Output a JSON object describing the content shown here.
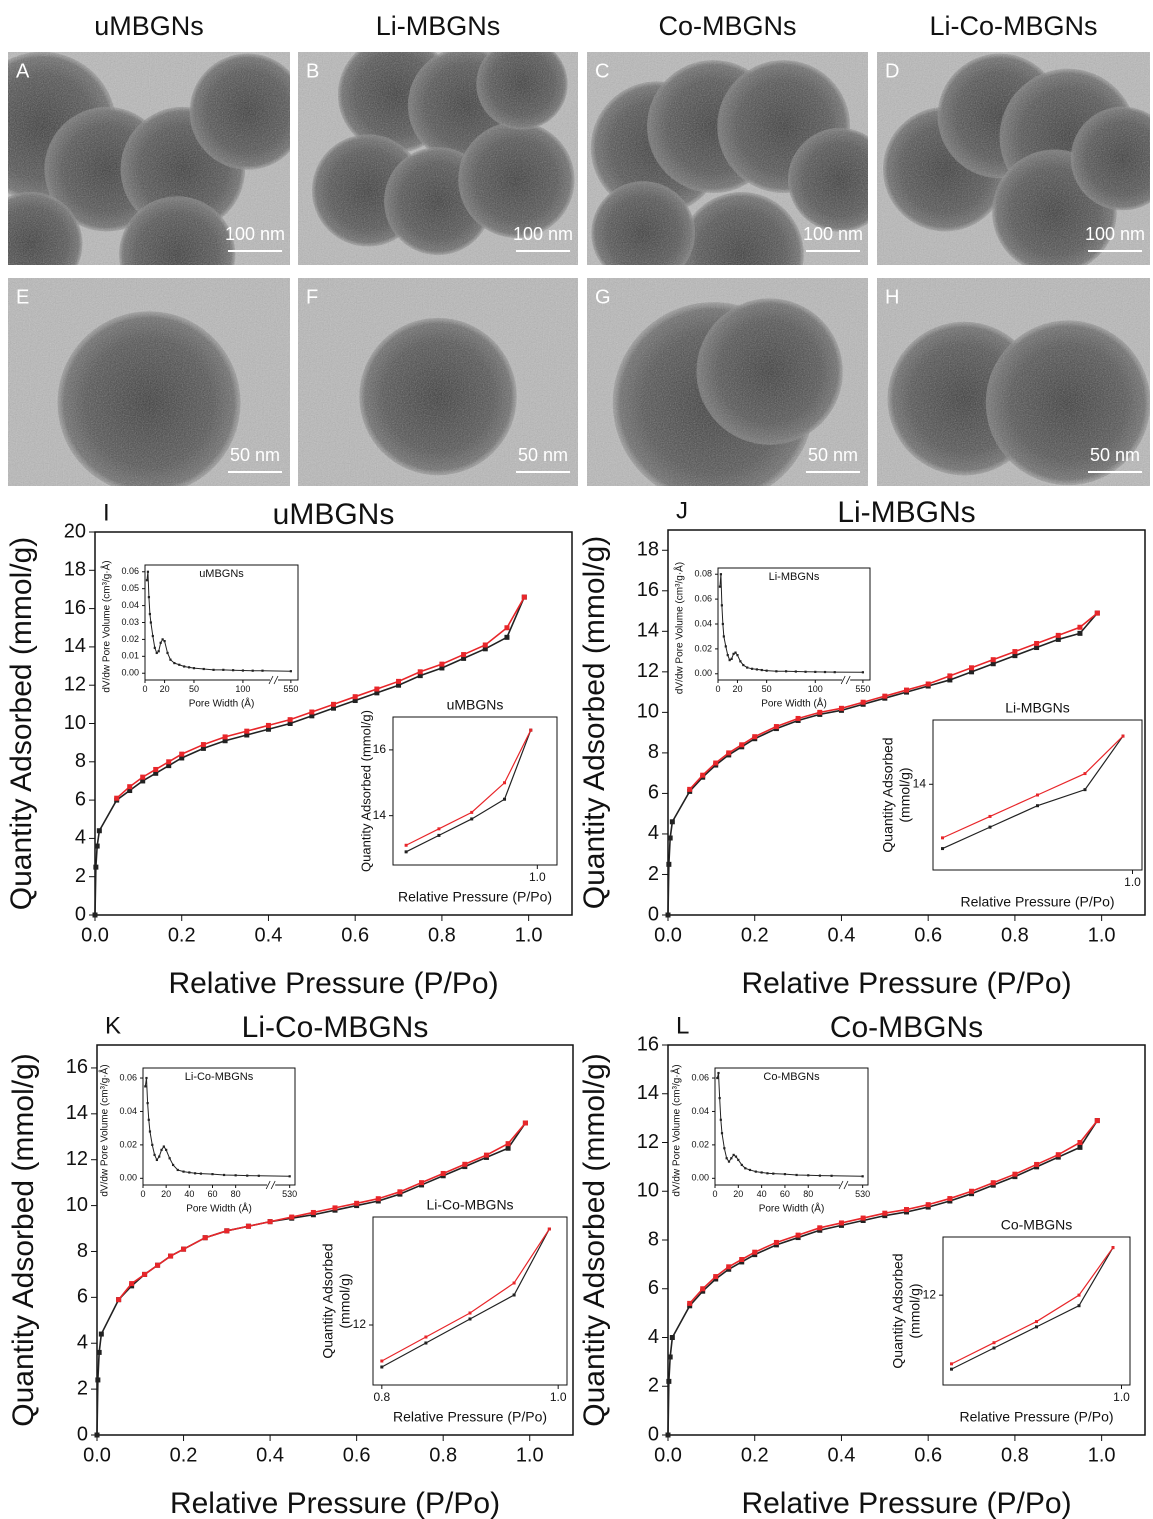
{
  "micrographs": {
    "column_titles": [
      "uMBGNs",
      "Li-MBGNs",
      "Co-MBGNs",
      "Li-Co-MBGNs"
    ],
    "panels": [
      {
        "label": "A",
        "scale_bar": "100 nm"
      },
      {
        "label": "B",
        "scale_bar": "100 nm"
      },
      {
        "label": "C",
        "scale_bar": "100 nm"
      },
      {
        "label": "D",
        "scale_bar": "100 nm"
      },
      {
        "label": "E",
        "scale_bar": "50 nm"
      },
      {
        "label": "F",
        "scale_bar": "50 nm"
      },
      {
        "label": "G",
        "scale_bar": "50 nm"
      },
      {
        "label": "H",
        "scale_bar": "50 nm"
      }
    ]
  },
  "chart_data": [
    {
      "type": "line",
      "label": "I",
      "title": "uMBGNs",
      "xlabel": "Relative Pressure (P/Po)",
      "ylabel": "Quantity Adsorbed (mmol/g)",
      "x": [
        0,
        0.002,
        0.005,
        0.01,
        0.05,
        0.08,
        0.11,
        0.14,
        0.17,
        0.2,
        0.25,
        0.3,
        0.35,
        0.4,
        0.45,
        0.5,
        0.55,
        0.6,
        0.65,
        0.7,
        0.75,
        0.8,
        0.85,
        0.9,
        0.95,
        0.99
      ],
      "series": [
        {
          "color": "#222222",
          "values": [
            0,
            2.5,
            3.6,
            4.4,
            6.0,
            6.5,
            7.0,
            7.4,
            7.8,
            8.2,
            8.7,
            9.1,
            9.4,
            9.7,
            10.0,
            10.4,
            10.8,
            11.2,
            11.6,
            12.0,
            12.5,
            12.9,
            13.4,
            13.9,
            14.5,
            16.6
          ]
        },
        {
          "color": "#e8262a",
          "values": [
            null,
            null,
            null,
            null,
            6.1,
            6.7,
            7.2,
            7.6,
            8.0,
            8.4,
            8.9,
            9.3,
            9.6,
            9.9,
            10.2,
            10.6,
            11.0,
            11.4,
            11.8,
            12.2,
            12.7,
            13.1,
            13.6,
            14.1,
            15.0,
            16.6
          ]
        }
      ],
      "xlim": [
        0,
        1.1
      ],
      "ylim": [
        0,
        20
      ],
      "xticks": [
        {
          "value": 0,
          "label": "0.0"
        },
        0.2,
        0.4,
        0.6,
        0.8,
        {
          "value": 1,
          "label": "1.0"
        }
      ],
      "yticks": [
        0,
        2,
        4,
        6,
        8,
        10,
        12,
        14,
        16,
        18,
        20
      ]
    },
    {
      "type": "line",
      "label": "J",
      "title": "Li-MBGNs",
      "xlabel": "Relative Pressure (P/Po)",
      "ylabel": "Quantity Adsorbed (mmol/g)",
      "x": [
        0,
        0.002,
        0.005,
        0.01,
        0.05,
        0.08,
        0.11,
        0.14,
        0.17,
        0.2,
        0.25,
        0.3,
        0.35,
        0.4,
        0.45,
        0.5,
        0.55,
        0.6,
        0.65,
        0.7,
        0.75,
        0.8,
        0.85,
        0.9,
        0.95,
        0.99
      ],
      "series": [
        {
          "color": "#222222",
          "values": [
            0,
            2.5,
            3.8,
            4.6,
            6.1,
            6.8,
            7.4,
            7.9,
            8.3,
            8.7,
            9.2,
            9.6,
            9.9,
            10.1,
            10.4,
            10.7,
            11.0,
            11.3,
            11.6,
            12.0,
            12.4,
            12.8,
            13.2,
            13.6,
            13.9,
            14.9
          ]
        },
        {
          "color": "#e8262a",
          "values": [
            null,
            null,
            null,
            null,
            6.2,
            6.9,
            7.5,
            8.0,
            8.4,
            8.8,
            9.3,
            9.7,
            10.0,
            10.2,
            10.5,
            10.8,
            11.1,
            11.4,
            11.8,
            12.2,
            12.6,
            13.0,
            13.4,
            13.8,
            14.2,
            14.9
          ]
        }
      ],
      "xlim": [
        0,
        1.1
      ],
      "ylim": [
        0,
        19
      ],
      "xticks": [
        {
          "value": 0,
          "label": "0.0"
        },
        0.2,
        0.4,
        0.6,
        0.8,
        {
          "value": 1,
          "label": "1.0"
        }
      ],
      "yticks": [
        0,
        2,
        4,
        6,
        8,
        10,
        12,
        14,
        16,
        18
      ]
    },
    {
      "type": "line",
      "label": "K",
      "title": "Li-Co-MBGNs",
      "xlabel": "Relative Pressure (P/Po)",
      "ylabel": "Quantity Adsorbed (mmol/g)",
      "x": [
        0,
        0.002,
        0.005,
        0.01,
        0.05,
        0.08,
        0.11,
        0.14,
        0.17,
        0.2,
        0.25,
        0.3,
        0.35,
        0.4,
        0.45,
        0.5,
        0.55,
        0.6,
        0.65,
        0.7,
        0.75,
        0.8,
        0.85,
        0.9,
        0.95,
        0.99
      ],
      "series": [
        {
          "color": "#222222",
          "values": [
            0,
            2.4,
            3.6,
            4.4,
            5.9,
            6.5,
            7.0,
            7.4,
            7.8,
            8.1,
            8.6,
            8.9,
            9.1,
            9.3,
            9.45,
            9.6,
            9.8,
            10.0,
            10.2,
            10.5,
            10.9,
            11.3,
            11.7,
            12.1,
            12.5,
            13.6
          ]
        },
        {
          "color": "#e8262a",
          "values": [
            null,
            null,
            null,
            null,
            5.9,
            6.6,
            7.0,
            7.4,
            7.8,
            8.1,
            8.6,
            8.9,
            9.1,
            9.3,
            9.5,
            9.7,
            9.9,
            10.1,
            10.3,
            10.6,
            11.0,
            11.4,
            11.8,
            12.2,
            12.7,
            13.6
          ]
        }
      ],
      "xlim": [
        0,
        1.1
      ],
      "ylim": [
        0,
        17
      ],
      "xticks": [
        {
          "value": 0,
          "label": "0.0"
        },
        0.2,
        0.4,
        0.6,
        0.8,
        {
          "value": 1,
          "label": "1.0"
        }
      ],
      "yticks": [
        0,
        2,
        4,
        6,
        8,
        10,
        12,
        14,
        16
      ]
    },
    {
      "type": "line",
      "label": "L",
      "title": "Co-MBGNs",
      "xlabel": "Relative Pressure (P/Po)",
      "ylabel": "Quantity Adsorbed (mmol/g)",
      "x": [
        0,
        0.002,
        0.005,
        0.01,
        0.05,
        0.08,
        0.11,
        0.14,
        0.17,
        0.2,
        0.25,
        0.3,
        0.35,
        0.4,
        0.45,
        0.5,
        0.55,
        0.6,
        0.65,
        0.7,
        0.75,
        0.8,
        0.85,
        0.9,
        0.95,
        0.99
      ],
      "series": [
        {
          "color": "#222222",
          "values": [
            0,
            2.2,
            3.2,
            4.0,
            5.3,
            5.9,
            6.4,
            6.8,
            7.1,
            7.4,
            7.8,
            8.1,
            8.4,
            8.6,
            8.8,
            9.0,
            9.15,
            9.35,
            9.6,
            9.9,
            10.25,
            10.6,
            11.0,
            11.4,
            11.8,
            12.9
          ]
        },
        {
          "color": "#e8262a",
          "values": [
            null,
            null,
            null,
            null,
            5.4,
            6.0,
            6.5,
            6.9,
            7.2,
            7.5,
            7.9,
            8.2,
            8.5,
            8.7,
            8.9,
            9.1,
            9.25,
            9.45,
            9.7,
            10.0,
            10.35,
            10.7,
            11.1,
            11.5,
            12.0,
            12.9
          ]
        }
      ],
      "xlim": [
        0,
        1.1
      ],
      "ylim": [
        0,
        16
      ],
      "xticks": [
        {
          "value": 0,
          "label": "0.0"
        },
        0.2,
        0.4,
        0.6,
        0.8,
        {
          "value": 1,
          "label": "1.0"
        }
      ],
      "yticks": [
        0,
        2,
        4,
        6,
        8,
        10,
        12,
        14,
        16
      ]
    },
    {
      "type": "line",
      "title": "uMBGNs",
      "xlabel": "Pore Width (Å)",
      "ylabel": "dV/dw Pore Volume (cm³/g·Å)",
      "x": [
        2,
        3,
        4,
        5,
        6,
        8,
        10,
        12,
        14,
        16,
        18,
        20,
        23,
        26,
        30,
        35,
        40,
        45,
        50,
        60,
        70,
        80,
        90,
        100,
        110,
        120,
        550
      ],
      "series": [
        {
          "color": "#222222",
          "values": [
            0.055,
            0.06,
            0.045,
            0.035,
            0.03,
            0.022,
            0.015,
            0.012,
            0.013,
            0.018,
            0.02,
            0.019,
            0.012,
            0.008,
            0.006,
            0.005,
            0.004,
            0.0035,
            0.003,
            0.0025,
            0.002,
            0.002,
            0.0018,
            0.0016,
            0.0015,
            0.0015,
            0.0012
          ]
        }
      ],
      "xlim": [
        0,
        555
      ],
      "xbreak": [
        125,
        540
      ],
      "ylim": [
        -0.004,
        0.064
      ],
      "xticks": [
        0,
        20,
        50,
        100,
        550
      ],
      "yticks": [
        {
          "value": 0,
          "label": "0.00"
        },
        0.01,
        0.02,
        0.03,
        0.04,
        0.05,
        0.06
      ]
    },
    {
      "type": "line",
      "title": "Li-MBGNs",
      "xlabel": "Pore Width (Å)",
      "ylabel": "dV/dw Pore Volume (cm³/g·Å)",
      "x": [
        2,
        3,
        4,
        5,
        6,
        8,
        10,
        12,
        14,
        16,
        18,
        20,
        23,
        26,
        30,
        35,
        40,
        45,
        50,
        60,
        70,
        80,
        90,
        100,
        110,
        120,
        550
      ],
      "series": [
        {
          "color": "#222222",
          "values": [
            0.07,
            0.08,
            0.055,
            0.04,
            0.03,
            0.022,
            0.015,
            0.011,
            0.012,
            0.016,
            0.017,
            0.015,
            0.01,
            0.007,
            0.005,
            0.004,
            0.0035,
            0.003,
            0.0025,
            0.002,
            0.002,
            0.0018,
            0.0016,
            0.0015,
            0.0014,
            0.0013,
            0.0012
          ]
        }
      ],
      "xlim": [
        0,
        555
      ],
      "xbreak": [
        125,
        540
      ],
      "ylim": [
        -0.005,
        0.085
      ],
      "xticks": [
        0,
        20,
        50,
        100,
        550
      ],
      "yticks": [
        {
          "value": 0,
          "label": "0.00"
        },
        0.02,
        0.04,
        0.06,
        0.08
      ]
    },
    {
      "type": "line",
      "title": "Li-Co-MBGNs",
      "xlabel": "Pore Width (Å)",
      "ylabel": "dV/dw Pore Volume (cm³/g·Å)",
      "x": [
        2,
        3,
        4,
        5,
        6,
        8,
        10,
        12,
        14,
        16,
        18,
        20,
        23,
        26,
        30,
        35,
        40,
        45,
        50,
        60,
        70,
        80,
        90,
        100,
        530
      ],
      "series": [
        {
          "color": "#222222",
          "values": [
            0.055,
            0.06,
            0.045,
            0.035,
            0.028,
            0.02,
            0.014,
            0.011,
            0.013,
            0.017,
            0.019,
            0.017,
            0.012,
            0.008,
            0.005,
            0.004,
            0.0035,
            0.003,
            0.0028,
            0.0025,
            0.002,
            0.0018,
            0.0016,
            0.0015,
            0.0012
          ]
        }
      ],
      "xlim": [
        0,
        535
      ],
      "xbreak": [
        105,
        515
      ],
      "ylim": [
        -0.004,
        0.066
      ],
      "xticks": [
        0,
        20,
        40,
        60,
        80,
        530
      ],
      "yticks": [
        {
          "value": 0,
          "label": "0.00"
        },
        0.02,
        0.04,
        0.06
      ]
    },
    {
      "type": "line",
      "title": "Co-MBGNs",
      "xlabel": "Pore Width (Å)",
      "ylabel": "dV/dw Pore Volume (cm³/g·Å)",
      "x": [
        2,
        3,
        4,
        5,
        6,
        8,
        10,
        12,
        14,
        16,
        18,
        20,
        23,
        26,
        30,
        35,
        40,
        45,
        50,
        60,
        70,
        80,
        90,
        100,
        530
      ],
      "series": [
        {
          "color": "#222222",
          "values": [
            0.06,
            0.063,
            0.048,
            0.035,
            0.027,
            0.018,
            0.012,
            0.01,
            0.012,
            0.014,
            0.013,
            0.011,
            0.008,
            0.006,
            0.005,
            0.004,
            0.0035,
            0.003,
            0.0028,
            0.0025,
            0.002,
            0.0018,
            0.0016,
            0.0015,
            0.0012
          ]
        }
      ],
      "xlim": [
        0,
        535
      ],
      "xbreak": [
        105,
        515
      ],
      "ylim": [
        -0.004,
        0.066
      ],
      "xticks": [
        0,
        20,
        40,
        60,
        80,
        530
      ],
      "yticks": [
        {
          "value": 0,
          "label": "0.00"
        },
        0.02,
        0.04,
        0.06
      ]
    },
    {
      "type": "line",
      "title": "uMBGNs",
      "xlabel": "Relative Pressure (P/Po)",
      "ylabel": "Quantity Adsorbed (mmol/g)",
      "x": [
        0.8,
        0.85,
        0.9,
        0.95,
        0.99
      ],
      "series": [
        {
          "color": "#222222",
          "values": [
            12.9,
            13.4,
            13.9,
            14.5,
            16.6
          ]
        },
        {
          "color": "#e8262a",
          "values": [
            13.1,
            13.6,
            14.1,
            15.0,
            16.6
          ]
        }
      ],
      "xlim": [
        0.78,
        1.03
      ],
      "ylim": [
        12.5,
        17.0
      ],
      "xticks": [
        {
          "value": 1,
          "label": "1.0"
        }
      ],
      "yticks": [
        14,
        16
      ]
    },
    {
      "type": "line",
      "title": "Li-MBGNs",
      "xlabel": "Relative Pressure (P/Po)",
      "ylabel": [
        "Quantity Adsorbed",
        "(mmol/g)"
      ],
      "x": [
        0.8,
        0.85,
        0.9,
        0.95,
        0.99
      ],
      "series": [
        {
          "color": "#222222",
          "values": [
            12.8,
            13.2,
            13.6,
            13.9,
            14.9
          ]
        },
        {
          "color": "#e8262a",
          "values": [
            13.0,
            13.4,
            13.8,
            14.2,
            14.9
          ]
        }
      ],
      "xlim": [
        0.79,
        1.01
      ],
      "ylim": [
        12.4,
        15.2
      ],
      "xticks": [
        {
          "value": 1,
          "label": "1.0"
        }
      ],
      "yticks": [
        14
      ]
    },
    {
      "type": "line",
      "title": "Li-Co-MBGNs",
      "xlabel": "Relative Pressure (P/Po)",
      "ylabel": [
        "Quantity Adsorbed",
        "(mmol/g)"
      ],
      "x": [
        0.8,
        0.85,
        0.9,
        0.95,
        0.99
      ],
      "series": [
        {
          "color": "#222222",
          "values": [
            11.3,
            11.7,
            12.1,
            12.5,
            13.6
          ]
        },
        {
          "color": "#e8262a",
          "values": [
            11.4,
            11.8,
            12.2,
            12.7,
            13.6
          ]
        }
      ],
      "xlim": [
        0.79,
        1.01
      ],
      "ylim": [
        11.0,
        13.8
      ],
      "xticks": [
        0.8,
        {
          "value": 1,
          "label": "1.0"
        }
      ],
      "yticks": [
        12
      ]
    },
    {
      "type": "line",
      "title": "Co-MBGNs",
      "xlabel": "Relative Pressure (P/Po)",
      "ylabel": [
        "Quantity Adsorbed",
        "(mmol/g)"
      ],
      "x": [
        0.8,
        0.85,
        0.9,
        0.95,
        0.99
      ],
      "series": [
        {
          "color": "#222222",
          "values": [
            10.6,
            11.0,
            11.4,
            11.8,
            12.9
          ]
        },
        {
          "color": "#e8262a",
          "values": [
            10.7,
            11.1,
            11.5,
            12.0,
            12.9
          ]
        }
      ],
      "xlim": [
        0.79,
        1.01
      ],
      "ylim": [
        10.3,
        13.1
      ],
      "xticks": [
        {
          "value": 1,
          "label": "1.0"
        }
      ],
      "yticks": [
        12
      ]
    }
  ]
}
